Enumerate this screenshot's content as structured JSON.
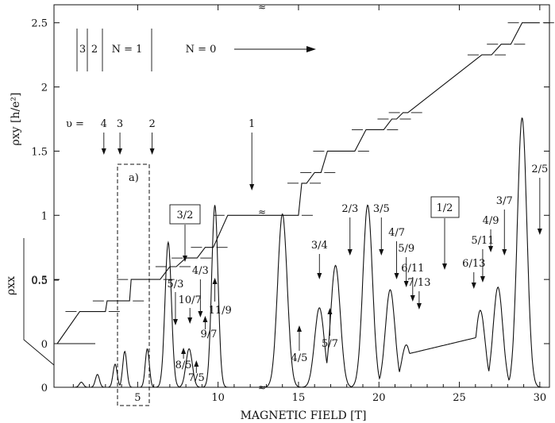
{
  "chart_data": {
    "type": "line",
    "xlabel": "MAGNETIC FIELD [T]",
    "ylabel_top": "ρxy [h/e²]",
    "ylabel_bottom": "ρxx",
    "xlim": [
      -0.2,
      30.6
    ],
    "ylim_rho_xy": [
      0,
      2.56
    ],
    "x_ticks": [
      "5",
      "10",
      "15",
      "20",
      "25",
      "30"
    ],
    "x_tick_values": [
      5,
      10,
      15,
      20,
      25,
      30
    ],
    "y_ticks_rho_xy": [
      "0",
      "0.5",
      "1",
      "1.5",
      "2",
      "2.5"
    ],
    "y_tick_values_rho_xy": [
      0,
      0.5,
      1,
      1.5,
      2,
      2.5
    ],
    "y_ticks_rho_xx": [
      "0",
      "0.5"
    ],
    "y_tick_values_rho_xx": [
      0,
      0.5
    ],
    "inset_label": "a)",
    "inset_region_x": [
      3.7,
      5.9
    ],
    "landau_levels": {
      "labels": [
        "3",
        "2",
        "N = 1",
        "N = 0"
      ]
    },
    "nu_prefix": "υ =",
    "integer_markers": [
      {
        "label": "4",
        "x": 2.9
      },
      {
        "label": "3",
        "x": 3.9
      },
      {
        "label": "2",
        "x": 5.9
      },
      {
        "label": "1",
        "x": 12.1
      }
    ],
    "boxed_labels": [
      "3/2",
      "1/2"
    ],
    "fraction_labels": [
      "5/3",
      "4/3",
      "10/7",
      "11/9",
      "9/7",
      "8/5",
      "7/5",
      "4/5",
      "3/4",
      "5/7",
      "2/3",
      "3/5",
      "4/7",
      "5/9",
      "6/11",
      "7/13",
      "6/13",
      "5/11",
      "4/9",
      "3/7",
      "2/5"
    ],
    "rho_xy_plateaus": [
      {
        "label": "4",
        "x_start": 1.4,
        "x_end": 3.0,
        "value": 0.25
      },
      {
        "label": "3",
        "x_start": 3.1,
        "x_end": 4.5,
        "value": 0.333
      },
      {
        "label": "2",
        "x_start": 4.6,
        "x_end": 6.4,
        "value": 0.5
      },
      {
        "label": "5/3",
        "x_start": 7.0,
        "x_end": 7.4,
        "value": 0.6
      },
      {
        "label": "3/2",
        "x_start": 8.0,
        "x_end": 8.7,
        "value": 0.667
      },
      {
        "label": "4/3",
        "x_start": 9.2,
        "x_end": 9.7,
        "value": 0.75
      },
      {
        "label": "1",
        "x_start": 10.6,
        "x_end": 15.0,
        "value": 1.0
      },
      {
        "label": "4/5",
        "x_start": 15.2,
        "x_end": 15.5,
        "value": 1.25
      },
      {
        "label": "3/4",
        "x_start": 16.0,
        "x_end": 16.4,
        "value": 1.333
      },
      {
        "label": "2/3",
        "x_start": 16.8,
        "x_end": 18.5,
        "value": 1.5
      },
      {
        "label": "3/5",
        "x_start": 19.2,
        "x_end": 20.3,
        "value": 1.667
      },
      {
        "label": "4/7",
        "x_start": 20.8,
        "x_end": 21.1,
        "value": 1.75
      },
      {
        "label": "5/9",
        "x_start": 21.5,
        "x_end": 21.8,
        "value": 1.8
      },
      {
        "label": "4/9",
        "x_start": 26.4,
        "x_end": 27.0,
        "value": 2.25
      },
      {
        "label": "3/7",
        "x_start": 27.6,
        "x_end": 28.2,
        "value": 2.333
      },
      {
        "label": "2/5",
        "x_start": 28.9,
        "x_end": 30.0,
        "value": 2.5
      }
    ],
    "rho_xx_peaks_rel_xy_units": [
      {
        "x": 1.5,
        "value": 0.04
      },
      {
        "x": 2.5,
        "value": 0.1
      },
      {
        "x": 3.6,
        "value": 0.18
      },
      {
        "x": 4.2,
        "value": 0.28
      },
      {
        "x": 5.6,
        "value": 0.3
      },
      {
        "x": 6.9,
        "value": 1.13
      },
      {
        "x": 8.2,
        "value": 0.3
      },
      {
        "x": 9.8,
        "value": 1.42
      },
      {
        "x": 14.0,
        "value": 1.35
      },
      {
        "x": 16.3,
        "value": 0.62
      },
      {
        "x": 17.3,
        "value": 0.95
      },
      {
        "x": 19.3,
        "value": 1.42
      },
      {
        "x": 20.7,
        "value": 0.76
      },
      {
        "x": 21.7,
        "value": 0.33
      },
      {
        "x": 26.3,
        "value": 0.6
      },
      {
        "x": 27.4,
        "value": 0.78
      },
      {
        "x": 28.9,
        "value": 2.1
      }
    ]
  },
  "axis_break_mark": "≈"
}
